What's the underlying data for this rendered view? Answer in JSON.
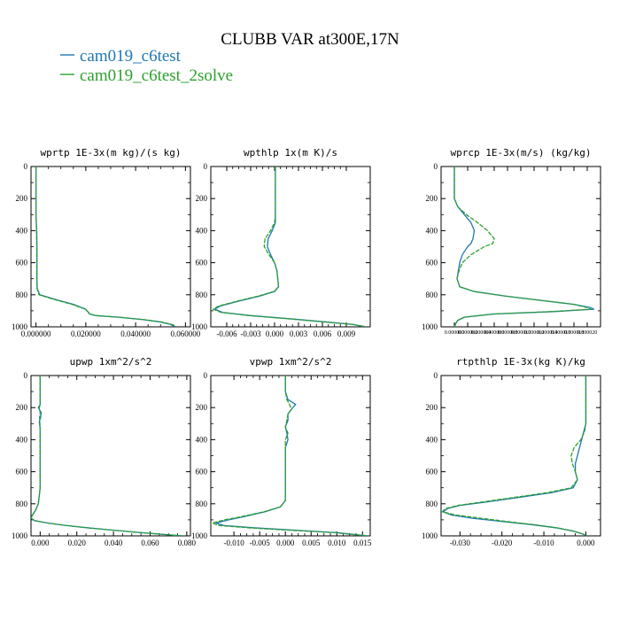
{
  "figure": {
    "title": "CLUBB VAR at300E,17N",
    "legend": [
      {
        "label": "cam019_c6test",
        "color": "#1f77b4"
      },
      {
        "label": "cam019_c6test_2solve",
        "color": "#2ca02c"
      }
    ]
  },
  "chart_data": [
    {
      "type": "line",
      "title": "wprtp  1E-3x(m kg)/(s kg)",
      "xlim": [
        -0.002,
        0.062
      ],
      "ylim": [
        1000,
        0
      ],
      "xticks": [
        0.0,
        0.02,
        0.04,
        0.06
      ],
      "xtick_labels": [
        "0.000000",
        "0.020000",
        "0.040000",
        "0.060000"
      ],
      "yticks": [
        0,
        200,
        400,
        600,
        800,
        1000
      ],
      "ytick_labels": [
        "0",
        "200",
        "400",
        "600",
        "800",
        "1000"
      ],
      "y": [
        0,
        100,
        200,
        300,
        400,
        500,
        600,
        700,
        760,
        800,
        830,
        860,
        890,
        920,
        930,
        940,
        955,
        970,
        985,
        1000
      ],
      "series": [
        {
          "name": "cam019_c6test",
          "color": "#1f77b4",
          "values": [
            0.0,
            0.0,
            0.0,
            0.0,
            0.0003,
            0.0004,
            0.0004,
            0.0004,
            0.0005,
            0.0015,
            0.008,
            0.015,
            0.02,
            0.0215,
            0.024,
            0.033,
            0.043,
            0.05,
            0.054,
            0.056
          ]
        },
        {
          "name": "cam019_c6test_2solve",
          "color": "#2ca02c",
          "values": [
            0.0,
            0.0,
            0.0,
            0.0,
            0.0002,
            0.0003,
            0.0003,
            0.0003,
            0.0004,
            0.0012,
            0.0075,
            0.0145,
            0.0198,
            0.0218,
            0.0242,
            0.0335,
            0.0435,
            0.0505,
            0.0545,
            0.0565
          ]
        }
      ]
    },
    {
      "type": "line",
      "title": "wpthlp  1x(m K)/s",
      "xlim": [
        -0.008,
        0.012
      ],
      "ylim": [
        1000,
        0
      ],
      "xticks": [
        -0.006,
        -0.003,
        0.0,
        0.003,
        0.006,
        0.009
      ],
      "xtick_labels": [
        "-0.006",
        "-0.003",
        "0.000",
        "0.003",
        "0.006",
        "0.009"
      ],
      "yticks": [
        0,
        200,
        400,
        600,
        800,
        1000
      ],
      "ytick_labels": [
        "0",
        "200",
        "400",
        "600",
        "800",
        "1000"
      ],
      "y": [
        0,
        100,
        200,
        300,
        350,
        400,
        450,
        500,
        550,
        600,
        650,
        700,
        750,
        780,
        810,
        840,
        870,
        890,
        910,
        930,
        950,
        970,
        985,
        1000
      ],
      "series": [
        {
          "name": "cam019_c6test",
          "color": "#1f77b4",
          "values": [
            0.0001,
            0.0001,
            0.0001,
            0.0001,
            0.0001,
            -0.0003,
            -0.0008,
            -0.0009,
            -0.0005,
            0.0,
            0.0003,
            0.0004,
            0.0005,
            0.0,
            -0.002,
            -0.0045,
            -0.0068,
            -0.0075,
            -0.0065,
            -0.003,
            0.002,
            0.0065,
            0.0098,
            0.0115
          ]
        },
        {
          "name": "cam019_c6test_2solve",
          "color": "#2ca02c",
          "values": [
            0.0001,
            0.0001,
            0.0001,
            0.0001,
            0.0,
            -0.0005,
            -0.0012,
            -0.0013,
            -0.0007,
            0.0,
            0.0003,
            0.0004,
            0.0005,
            -0.0001,
            -0.0022,
            -0.0047,
            -0.007,
            -0.0077,
            -0.0067,
            -0.0032,
            0.0018,
            0.0063,
            0.0097,
            0.0115
          ]
        }
      ]
    },
    {
      "type": "line",
      "title": "wprcp  1E-3x(m/s) (kg/kg)",
      "xlim": [
        -2e-06,
        2.2e-05
      ],
      "ylim": [
        1000,
        0
      ],
      "xticks": [
        0.0,
        2e-06,
        4e-06,
        6e-06,
        8e-06,
        1e-05,
        1.2e-05,
        1.4e-05,
        1.6e-05,
        1.8e-05,
        2e-05
      ],
      "xtick_labels": [
        "0.000000",
        "0.000002",
        "0.000004",
        "0.000006",
        "0.000008",
        "0.000010",
        "0.000012",
        "0.000014",
        "0.000016",
        "0.000018",
        "0.000020"
      ],
      "yticks": [
        0,
        200,
        400,
        600,
        800,
        1000
      ],
      "ytick_labels": [
        "0",
        "200",
        "400",
        "600",
        "800",
        "1000"
      ],
      "y": [
        0,
        100,
        200,
        250,
        300,
        350,
        400,
        450,
        480,
        500,
        550,
        600,
        650,
        700,
        750,
        780,
        810,
        840,
        860,
        880,
        890,
        905,
        920,
        940,
        960,
        980,
        1000
      ],
      "series": [
        {
          "name": "cam019_c6test",
          "color": "#1f77b4",
          "values": [
            0.0,
            0.0,
            0.0,
            5e-07,
            1.5e-06,
            2.5e-06,
            3e-06,
            2.8e-06,
            2.5e-06,
            2e-06,
            1.2e-06,
            8e-07,
            6e-07,
            4e-07,
            8e-07,
            3e-06,
            8e-06,
            1.4e-05,
            1.8e-05,
            2.05e-05,
            2.1e-05,
            1.5e-05,
            6e-06,
            1.5e-06,
            5e-07,
            2e-07,
            0.0
          ]
        },
        {
          "name": "cam019_c6test_2solve",
          "color": "#2ca02c",
          "values": [
            0.0,
            0.0,
            0.0,
            5e-07,
            1.8e-06,
            3.5e-06,
            5e-06,
            6e-06,
            5.8e-06,
            4.5e-06,
            2.5e-06,
            1.2e-06,
            7e-07,
            4e-07,
            8e-07,
            3e-06,
            8e-06,
            1.4e-05,
            1.8e-05,
            2e-05,
            2.05e-05,
            1.45e-05,
            5.8e-06,
            1.5e-06,
            5e-07,
            2e-07,
            0.0
          ]
        }
      ]
    },
    {
      "type": "line",
      "title": "upwp  1xm^2/s^2",
      "xlim": [
        -0.005,
        0.082
      ],
      "ylim": [
        1000,
        0
      ],
      "xticks": [
        0.0,
        0.02,
        0.04,
        0.06,
        0.08
      ],
      "xtick_labels": [
        "0.000",
        "0.020",
        "0.040",
        "0.060",
        "0.080"
      ],
      "yticks": [
        0,
        200,
        400,
        600,
        800,
        1000
      ],
      "ytick_labels": [
        "0",
        "200",
        "400",
        "600",
        "800",
        "1000"
      ],
      "y": [
        0,
        100,
        180,
        200,
        230,
        260,
        290,
        330,
        400,
        500,
        600,
        700,
        750,
        800,
        840,
        870,
        890,
        905,
        920,
        935,
        950,
        965,
        980,
        995,
        1000
      ],
      "series": [
        {
          "name": "cam019_c6test",
          "color": "#1f77b4",
          "values": [
            0.0,
            0.0,
            0.0,
            -0.001,
            0.0005,
            0.0003,
            -0.0005,
            0.0,
            0.0,
            0.0,
            0.0,
            0.0,
            -0.0005,
            -0.001,
            -0.0025,
            -0.0042,
            -0.005,
            -0.003,
            0.004,
            0.014,
            0.026,
            0.04,
            0.055,
            0.072,
            0.078
          ]
        },
        {
          "name": "cam019_c6test_2solve",
          "color": "#2ca02c",
          "values": [
            0.0,
            0.0,
            0.0,
            -0.0005,
            0.0,
            -0.0003,
            -0.0002,
            0.0,
            0.0,
            0.0,
            0.0,
            0.0,
            -0.0005,
            -0.001,
            -0.0025,
            -0.0042,
            -0.005,
            -0.003,
            0.004,
            0.014,
            0.026,
            0.04,
            0.055,
            0.072,
            0.078
          ]
        }
      ]
    },
    {
      "type": "line",
      "title": "vpwp  1xm^2/s^2",
      "xlim": [
        -0.0145,
        0.0165
      ],
      "ylim": [
        1000,
        0
      ],
      "xticks": [
        -0.01,
        -0.005,
        0.0,
        0.005,
        0.01,
        0.015
      ],
      "xtick_labels": [
        "-0.010",
        "-0.005",
        "0.000",
        "0.005",
        "0.010",
        "0.015"
      ],
      "yticks": [
        0,
        200,
        400,
        600,
        800,
        1000
      ],
      "ytick_labels": [
        "0",
        "200",
        "400",
        "600",
        "800",
        "1000"
      ],
      "y": [
        0,
        100,
        150,
        180,
        210,
        240,
        280,
        320,
        360,
        400,
        450,
        500,
        600,
        700,
        780,
        820,
        850,
        880,
        900,
        920,
        935,
        950,
        965,
        980,
        1000
      ],
      "series": [
        {
          "name": "cam019_c6test",
          "color": "#1f77b4",
          "values": [
            0.0,
            0.0,
            0.0005,
            0.002,
            0.0012,
            0.0005,
            0.0005,
            0.0,
            0.0003,
            0.0005,
            0.0,
            0.0,
            0.0,
            0.0,
            0.0,
            -0.001,
            -0.004,
            -0.008,
            -0.011,
            -0.0135,
            -0.012,
            -0.006,
            0.002,
            0.01,
            0.016
          ]
        },
        {
          "name": "cam019_c6test_2solve",
          "color": "#2ca02c",
          "values": [
            0.0,
            0.0,
            0.0003,
            0.0008,
            0.0012,
            0.0005,
            0.0003,
            0.0,
            0.0005,
            0.0,
            0.0,
            0.0,
            0.0,
            0.0,
            0.0,
            -0.001,
            -0.0042,
            -0.0085,
            -0.0118,
            -0.0142,
            -0.013,
            -0.007,
            0.001,
            0.0095,
            0.016
          ]
        }
      ]
    },
    {
      "type": "line",
      "title": "rtpthlp  1E-3x(kg K)/kg",
      "xlim": [
        -0.0345,
        0.0035
      ],
      "ylim": [
        1000,
        0
      ],
      "xticks": [
        -0.03,
        -0.02,
        -0.01,
        0.0
      ],
      "xtick_labels": [
        "-0.030",
        "-0.020",
        "-0.010",
        "0.000"
      ],
      "yticks": [
        0,
        200,
        400,
        600,
        800,
        1000
      ],
      "ytick_labels": [
        "0",
        "200",
        "400",
        "600",
        "800",
        "1000"
      ],
      "y": [
        0,
        100,
        200,
        300,
        350,
        400,
        450,
        500,
        550,
        600,
        650,
        700,
        730,
        760,
        790,
        810,
        830,
        850,
        870,
        890,
        910,
        930,
        950,
        970,
        990,
        1000
      ],
      "series": [
        {
          "name": "cam019_c6test",
          "color": "#1f77b4",
          "values": [
            0.0,
            0.0,
            0.0,
            0.0,
            -0.0005,
            -0.001,
            -0.0015,
            -0.002,
            -0.0025,
            -0.0025,
            -0.002,
            -0.003,
            -0.008,
            -0.016,
            -0.024,
            -0.03,
            -0.033,
            -0.034,
            -0.032,
            -0.027,
            -0.02,
            -0.013,
            -0.007,
            -0.003,
            -0.0005,
            0.0
          ]
        },
        {
          "name": "cam019_c6test_2solve",
          "color": "#2ca02c",
          "values": [
            0.0,
            0.0,
            0.0,
            0.0,
            -0.0003,
            -0.0012,
            -0.0028,
            -0.0035,
            -0.0032,
            -0.0025,
            -0.002,
            -0.0035,
            -0.009,
            -0.017,
            -0.025,
            -0.0305,
            -0.0335,
            -0.0342,
            -0.031,
            -0.025,
            -0.019,
            -0.0125,
            -0.0068,
            -0.003,
            -0.0005,
            0.0
          ]
        }
      ]
    }
  ]
}
